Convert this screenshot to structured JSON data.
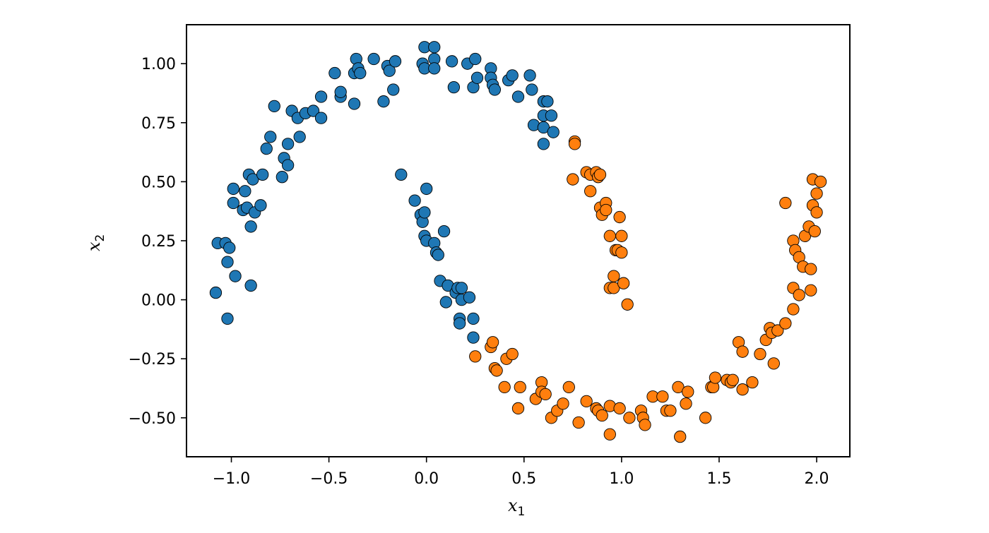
{
  "chart_data": {
    "type": "scatter",
    "title": "",
    "xlabel": "x",
    "xlabel_sub": "1",
    "ylabel": "x",
    "ylabel_sub": "2",
    "xlim": [
      -1.23,
      2.17
    ],
    "ylim": [
      -0.665,
      1.165
    ],
    "x_ticks": [
      -1.0,
      -0.5,
      0.0,
      0.5,
      1.0,
      1.5,
      2.0
    ],
    "x_tick_labels": [
      "−1.0",
      "−0.5",
      "0.0",
      "0.5",
      "1.0",
      "1.5",
      "2.0"
    ],
    "y_ticks": [
      1.0,
      0.75,
      0.5,
      0.25,
      0.0,
      -0.25,
      -0.5
    ],
    "y_tick_labels": [
      "1.00",
      "0.75",
      "0.50",
      "0.25",
      "0.00",
      "−0.25",
      "−0.50"
    ],
    "grid": false,
    "legend": "none",
    "series": [
      {
        "color": "#1f77b4",
        "points": [
          [
            -1.07,
            0.24
          ],
          [
            -1.08,
            0.03
          ],
          [
            -1.03,
            0.24
          ],
          [
            -1.02,
            0.16
          ],
          [
            -1.01,
            0.22
          ],
          [
            -1.02,
            -0.08
          ],
          [
            -0.99,
            0.47
          ],
          [
            -0.99,
            0.41
          ],
          [
            -0.98,
            0.1
          ],
          [
            -0.94,
            0.38
          ],
          [
            -0.93,
            0.46
          ],
          [
            -0.92,
            0.39
          ],
          [
            -0.91,
            0.53
          ],
          [
            -0.9,
            0.31
          ],
          [
            -0.9,
            0.06
          ],
          [
            -0.89,
            0.51
          ],
          [
            -0.88,
            0.37
          ],
          [
            -0.85,
            0.4
          ],
          [
            -0.84,
            0.53
          ],
          [
            -0.82,
            0.64
          ],
          [
            -0.8,
            0.69
          ],
          [
            -0.78,
            0.82
          ],
          [
            -0.74,
            0.52
          ],
          [
            -0.73,
            0.6
          ],
          [
            -0.71,
            0.66
          ],
          [
            -0.71,
            0.57
          ],
          [
            -0.69,
            0.8
          ],
          [
            -0.66,
            0.77
          ],
          [
            -0.65,
            0.69
          ],
          [
            -0.62,
            0.79
          ],
          [
            -0.58,
            0.8
          ],
          [
            -0.54,
            0.86
          ],
          [
            -0.54,
            0.77
          ],
          [
            -0.47,
            0.96
          ],
          [
            -0.44,
            0.86
          ],
          [
            -0.44,
            0.88
          ],
          [
            -0.37,
            0.83
          ],
          [
            -0.37,
            0.96
          ],
          [
            -0.36,
            1.02
          ],
          [
            -0.35,
            0.98
          ],
          [
            -0.34,
            0.96
          ],
          [
            -0.27,
            1.02
          ],
          [
            -0.22,
            0.84
          ],
          [
            -0.2,
            0.99
          ],
          [
            -0.19,
            0.97
          ],
          [
            -0.17,
            0.89
          ],
          [
            -0.16,
            1.01
          ],
          [
            -0.02,
            1.0
          ],
          [
            -0.01,
            1.07
          ],
          [
            -0.01,
            0.98
          ],
          [
            0.04,
            1.07
          ],
          [
            0.04,
            1.02
          ],
          [
            0.04,
            0.98
          ],
          [
            0.13,
            1.01
          ],
          [
            0.14,
            0.9
          ],
          [
            0.21,
            1.0
          ],
          [
            0.24,
            0.9
          ],
          [
            0.25,
            1.02
          ],
          [
            0.26,
            0.94
          ],
          [
            0.33,
            0.98
          ],
          [
            0.33,
            0.94
          ],
          [
            0.34,
            0.91
          ],
          [
            0.35,
            0.89
          ],
          [
            0.42,
            0.93
          ],
          [
            0.44,
            0.95
          ],
          [
            0.47,
            0.86
          ],
          [
            0.53,
            0.95
          ],
          [
            0.54,
            0.89
          ],
          [
            0.55,
            0.74
          ],
          [
            0.6,
            0.73
          ],
          [
            0.6,
            0.66
          ],
          [
            0.6,
            0.78
          ],
          [
            0.6,
            0.84
          ],
          [
            0.62,
            0.84
          ],
          [
            0.64,
            0.78
          ],
          [
            0.65,
            0.71
          ],
          [
            -0.13,
            0.53
          ],
          [
            -0.06,
            0.42
          ],
          [
            -0.03,
            0.36
          ],
          [
            -0.02,
            0.33
          ],
          [
            -0.01,
            0.37
          ],
          [
            -0.01,
            0.27
          ],
          [
            0.0,
            0.47
          ],
          [
            0.0,
            0.25
          ],
          [
            0.04,
            0.24
          ],
          [
            0.05,
            0.2
          ],
          [
            0.06,
            0.19
          ],
          [
            0.07,
            0.08
          ],
          [
            0.09,
            0.29
          ],
          [
            0.1,
            -0.01
          ],
          [
            0.11,
            0.06
          ],
          [
            0.15,
            0.03
          ],
          [
            0.16,
            0.05
          ],
          [
            0.17,
            -0.08
          ],
          [
            0.17,
            -0.1
          ],
          [
            0.18,
            0.0
          ],
          [
            0.18,
            0.05
          ],
          [
            0.22,
            0.01
          ],
          [
            0.24,
            -0.08
          ],
          [
            0.24,
            -0.16
          ]
        ]
      },
      {
        "color": "#ff7f0e",
        "points": [
          [
            0.75,
            0.51
          ],
          [
            0.76,
            0.67
          ],
          [
            0.76,
            0.66
          ],
          [
            0.82,
            0.54
          ],
          [
            0.84,
            0.53
          ],
          [
            0.84,
            0.46
          ],
          [
            0.87,
            0.54
          ],
          [
            0.88,
            0.52
          ],
          [
            0.89,
            0.53
          ],
          [
            0.89,
            0.39
          ],
          [
            0.9,
            0.36
          ],
          [
            0.92,
            0.41
          ],
          [
            0.92,
            0.38
          ],
          [
            0.94,
            0.27
          ],
          [
            0.94,
            0.05
          ],
          [
            0.96,
            0.1
          ],
          [
            0.96,
            0.05
          ],
          [
            0.97,
            0.21
          ],
          [
            0.98,
            0.21
          ],
          [
            0.99,
            0.35
          ],
          [
            1.0,
            0.27
          ],
          [
            1.0,
            0.2
          ],
          [
            1.01,
            0.07
          ],
          [
            1.03,
            -0.02
          ],
          [
            0.25,
            -0.24
          ],
          [
            0.33,
            -0.2
          ],
          [
            0.34,
            -0.18
          ],
          [
            0.35,
            -0.29
          ],
          [
            0.36,
            -0.3
          ],
          [
            0.4,
            -0.37
          ],
          [
            0.41,
            -0.25
          ],
          [
            0.44,
            -0.23
          ],
          [
            0.47,
            -0.46
          ],
          [
            0.48,
            -0.37
          ],
          [
            0.56,
            -0.42
          ],
          [
            0.59,
            -0.35
          ],
          [
            0.59,
            -0.39
          ],
          [
            0.61,
            -0.4
          ],
          [
            0.64,
            -0.5
          ],
          [
            0.67,
            -0.47
          ],
          [
            0.7,
            -0.44
          ],
          [
            0.73,
            -0.37
          ],
          [
            0.78,
            -0.52
          ],
          [
            0.82,
            -0.43
          ],
          [
            0.87,
            -0.46
          ],
          [
            0.88,
            -0.47
          ],
          [
            0.9,
            -0.49
          ],
          [
            0.94,
            -0.57
          ],
          [
            0.94,
            -0.45
          ],
          [
            0.99,
            -0.46
          ],
          [
            1.04,
            -0.5
          ],
          [
            1.1,
            -0.47
          ],
          [
            1.11,
            -0.5
          ],
          [
            1.12,
            -0.53
          ],
          [
            1.16,
            -0.41
          ],
          [
            1.21,
            -0.41
          ],
          [
            1.23,
            -0.47
          ],
          [
            1.25,
            -0.47
          ],
          [
            1.29,
            -0.37
          ],
          [
            1.3,
            -0.58
          ],
          [
            1.33,
            -0.44
          ],
          [
            1.34,
            -0.39
          ],
          [
            1.43,
            -0.5
          ],
          [
            1.46,
            -0.37
          ],
          [
            1.47,
            -0.37
          ],
          [
            1.48,
            -0.33
          ],
          [
            1.54,
            -0.34
          ],
          [
            1.56,
            -0.35
          ],
          [
            1.57,
            -0.34
          ],
          [
            1.6,
            -0.18
          ],
          [
            1.62,
            -0.22
          ],
          [
            1.62,
            -0.38
          ],
          [
            1.67,
            -0.35
          ],
          [
            1.71,
            -0.23
          ],
          [
            1.74,
            -0.17
          ],
          [
            1.76,
            -0.12
          ],
          [
            1.77,
            -0.14
          ],
          [
            1.78,
            -0.27
          ],
          [
            1.8,
            -0.13
          ],
          [
            1.84,
            0.41
          ],
          [
            1.84,
            -0.1
          ],
          [
            1.88,
            0.25
          ],
          [
            1.88,
            0.05
          ],
          [
            1.88,
            -0.04
          ],
          [
            1.89,
            0.21
          ],
          [
            1.91,
            0.18
          ],
          [
            1.91,
            0.02
          ],
          [
            1.93,
            0.14
          ],
          [
            1.94,
            0.27
          ],
          [
            1.96,
            0.31
          ],
          [
            1.97,
            0.13
          ],
          [
            1.97,
            0.04
          ],
          [
            1.98,
            0.51
          ],
          [
            1.98,
            0.4
          ],
          [
            1.99,
            0.29
          ],
          [
            2.0,
            0.45
          ],
          [
            2.0,
            0.37
          ],
          [
            2.02,
            0.5
          ]
        ]
      }
    ]
  }
}
